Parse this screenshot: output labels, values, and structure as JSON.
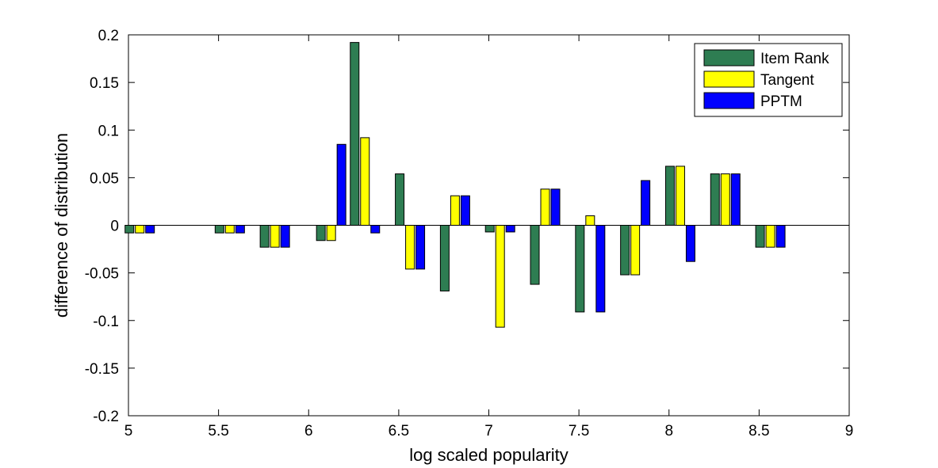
{
  "chart_data": {
    "type": "bar",
    "xlabel": "log scaled popularity",
    "ylabel": "difference of distribution",
    "xlim": [
      5,
      9
    ],
    "ylim": [
      -0.2,
      0.2
    ],
    "xticks": [
      "5",
      "5.5",
      "6",
      "6.5",
      "7",
      "7.5",
      "8",
      "8.5",
      "9"
    ],
    "yticks": [
      "-0.2",
      "-0.15",
      "-0.1",
      "-0.05",
      "0",
      "0.05",
      "0.1",
      "0.15",
      "0.2"
    ],
    "x": [
      5.0625,
      5.5625,
      5.8125,
      6.125,
      6.3125,
      6.5625,
      6.8125,
      7.0625,
      7.3125,
      7.5625,
      7.8125,
      8.0625,
      8.3125,
      8.5625
    ],
    "grid": false,
    "legend_position": "top-right",
    "series": [
      {
        "name": "Item Rank",
        "color": "#2e7d52",
        "values": [
          -0.008,
          -0.008,
          -0.023,
          -0.016,
          0.192,
          0.054,
          -0.069,
          -0.007,
          -0.062,
          -0.091,
          -0.052,
          0.062,
          0.054,
          -0.023
        ]
      },
      {
        "name": "Tangent",
        "color": "#ffff00",
        "values": [
          -0.008,
          -0.008,
          -0.023,
          -0.016,
          0.092,
          -0.046,
          0.031,
          -0.107,
          0.038,
          0.01,
          -0.052,
          0.062,
          0.054,
          -0.023
        ]
      },
      {
        "name": "PPTM",
        "color": "#0000ff",
        "values": [
          -0.008,
          -0.008,
          -0.023,
          0.085,
          -0.008,
          -0.046,
          0.031,
          -0.007,
          0.038,
          -0.091,
          0.047,
          -0.038,
          0.054,
          -0.023
        ]
      }
    ]
  }
}
